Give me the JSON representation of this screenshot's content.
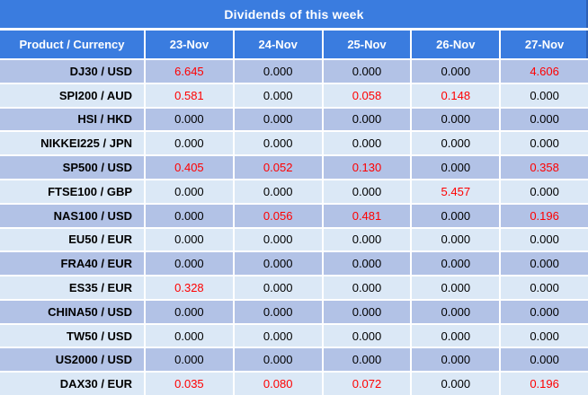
{
  "title": "Dividends of this week",
  "colors": {
    "header_blue": "#3a7cdf",
    "row_dark": "#b2c2e6",
    "row_light": "#dbe8f6",
    "value_red": "#ff0000",
    "text_dark": "#000000",
    "separator_white": "#ffffff"
  },
  "table": {
    "columns": [
      "Product / Currency",
      "23-Nov",
      "24-Nov",
      "25-Nov",
      "26-Nov",
      "27-Nov"
    ],
    "rows": [
      {
        "product": "DJ30 / USD",
        "values": [
          "6.645",
          "0.000",
          "0.000",
          "0.000",
          "4.606"
        ],
        "highlights": [
          true,
          false,
          false,
          false,
          true
        ]
      },
      {
        "product": "SPI200 / AUD",
        "values": [
          "0.581",
          "0.000",
          "0.058",
          "0.148",
          "0.000"
        ],
        "highlights": [
          true,
          false,
          true,
          true,
          false
        ]
      },
      {
        "product": "HSI / HKD",
        "values": [
          "0.000",
          "0.000",
          "0.000",
          "0.000",
          "0.000"
        ],
        "highlights": [
          false,
          false,
          false,
          false,
          false
        ]
      },
      {
        "product": "NIKKEI225 / JPN",
        "values": [
          "0.000",
          "0.000",
          "0.000",
          "0.000",
          "0.000"
        ],
        "highlights": [
          false,
          false,
          false,
          false,
          false
        ]
      },
      {
        "product": "SP500 / USD",
        "values": [
          "0.405",
          "0.052",
          "0.130",
          "0.000",
          "0.358"
        ],
        "highlights": [
          true,
          true,
          true,
          false,
          true
        ]
      },
      {
        "product": "FTSE100 / GBP",
        "values": [
          "0.000",
          "0.000",
          "0.000",
          "5.457",
          "0.000"
        ],
        "highlights": [
          false,
          false,
          false,
          true,
          false
        ]
      },
      {
        "product": "NAS100 / USD",
        "values": [
          "0.000",
          "0.056",
          "0.481",
          "0.000",
          "0.196"
        ],
        "highlights": [
          false,
          true,
          true,
          false,
          true
        ]
      },
      {
        "product": "EU50 / EUR",
        "values": [
          "0.000",
          "0.000",
          "0.000",
          "0.000",
          "0.000"
        ],
        "highlights": [
          false,
          false,
          false,
          false,
          false
        ]
      },
      {
        "product": "FRA40 / EUR",
        "values": [
          "0.000",
          "0.000",
          "0.000",
          "0.000",
          "0.000"
        ],
        "highlights": [
          false,
          false,
          false,
          false,
          false
        ]
      },
      {
        "product": "ES35 / EUR",
        "values": [
          "0.328",
          "0.000",
          "0.000",
          "0.000",
          "0.000"
        ],
        "highlights": [
          true,
          false,
          false,
          false,
          false
        ]
      },
      {
        "product": "CHINA50 / USD",
        "values": [
          "0.000",
          "0.000",
          "0.000",
          "0.000",
          "0.000"
        ],
        "highlights": [
          false,
          false,
          false,
          false,
          false
        ]
      },
      {
        "product": "TW50 / USD",
        "values": [
          "0.000",
          "0.000",
          "0.000",
          "0.000",
          "0.000"
        ],
        "highlights": [
          false,
          false,
          false,
          false,
          false
        ]
      },
      {
        "product": "US2000 / USD",
        "values": [
          "0.000",
          "0.000",
          "0.000",
          "0.000",
          "0.000"
        ],
        "highlights": [
          false,
          false,
          false,
          false,
          false
        ]
      },
      {
        "product": "DAX30 / EUR",
        "values": [
          "0.035",
          "0.080",
          "0.072",
          "0.000",
          "0.196"
        ],
        "highlights": [
          true,
          true,
          true,
          false,
          true
        ]
      }
    ]
  }
}
